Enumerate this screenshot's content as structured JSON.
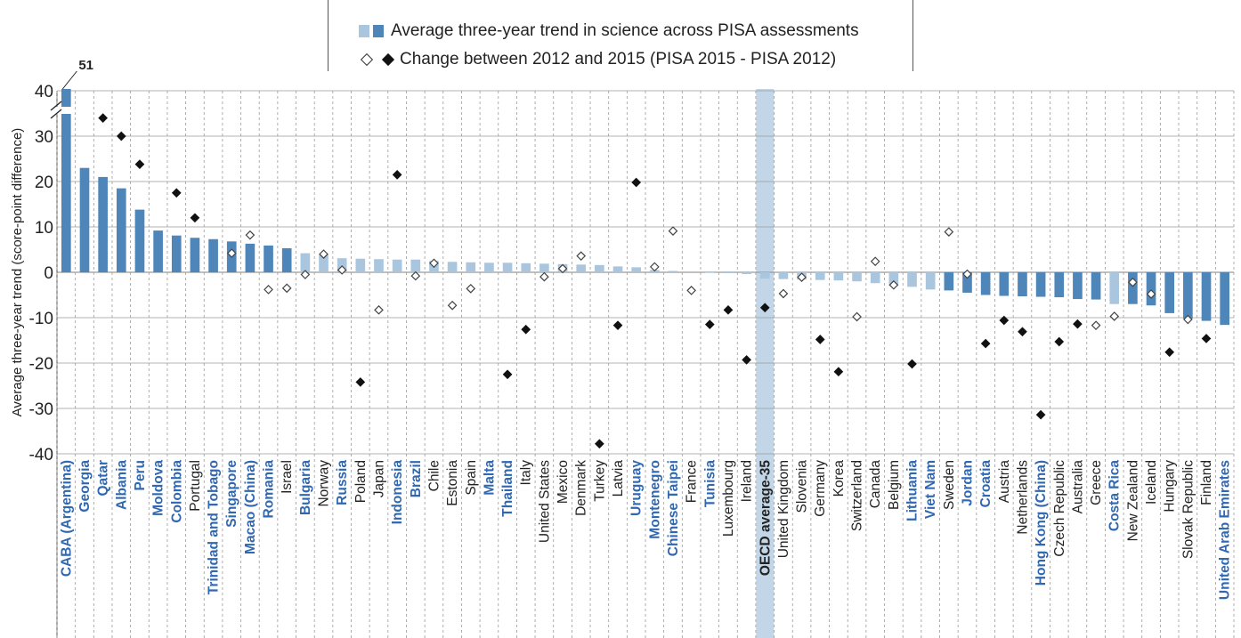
{
  "legend": {
    "trend_label": "Average three-year trend in science across PISA assessments",
    "change_label": "Change between 2012 and 2015 (PISA 2015 - PISA 2012)"
  },
  "colors": {
    "significant_bar": "#4f86b9",
    "nonsignificant_bar": "#a9c6de",
    "highlight_band": "#c2d6e8",
    "blue_label": "#2f67b1",
    "black_label": "#222222"
  },
  "chart_data": {
    "type": "bar",
    "ylabel": "Average three-year trend (score-point difference)",
    "ylim": [
      -40,
      40
    ],
    "yticks": [
      40,
      30,
      20,
      10,
      0,
      -10,
      -20,
      -30,
      -40
    ],
    "axis_break": true,
    "truncated_label": "51",
    "grid": true,
    "highlight_category": "OECD average-35",
    "categories": [
      "CABA (Argentina)",
      "Georgia",
      "Qatar",
      "Albania",
      "Peru",
      "Moldova",
      "Colombia",
      "Portugal",
      "Trinidad and Tobago",
      "Singapore",
      "Macao (China)",
      "Romania",
      "Israel",
      "Bulgaria",
      "Norway",
      "Russia",
      "Poland",
      "Japan",
      "Indonesia",
      "Brazil",
      "Chile",
      "Estonia",
      "Spain",
      "Malta",
      "Thailand",
      "Italy",
      "United States",
      "Mexico",
      "Denmark",
      "Turkey",
      "Latvia",
      "Uruguay",
      "Montenegro",
      "Chinese Taipei",
      "France",
      "Tunisia",
      "Luxembourg",
      "Ireland",
      "OECD average-35",
      "United Kingdom",
      "Slovenia",
      "Germany",
      "Korea",
      "Switzerland",
      "Canada",
      "Belgium",
      "Lithuania",
      "Viet Nam",
      "Sweden",
      "Jordan",
      "Croatia",
      "Austria",
      "Netherlands",
      "Hong Kong (China)",
      "Czech Republic",
      "Australia",
      "Greece",
      "Costa Rica",
      "New Zealand",
      "Iceland",
      "Hungary",
      "Slovak Republic",
      "Finland",
      "United Arab Emirates"
    ],
    "label_blue": [
      true,
      true,
      true,
      true,
      true,
      true,
      true,
      false,
      true,
      true,
      true,
      true,
      false,
      true,
      false,
      true,
      false,
      false,
      true,
      true,
      false,
      false,
      false,
      true,
      true,
      false,
      false,
      false,
      false,
      false,
      false,
      true,
      true,
      true,
      false,
      true,
      false,
      false,
      false,
      false,
      false,
      false,
      false,
      false,
      false,
      false,
      true,
      true,
      false,
      true,
      true,
      false,
      false,
      true,
      false,
      false,
      false,
      true,
      false,
      false,
      false,
      false,
      false,
      true
    ],
    "series": [
      {
        "name": "Average three-year trend in science across PISA assessments",
        "values": [
          51,
          23,
          21,
          18.5,
          13.8,
          9.2,
          8.1,
          7.6,
          7.3,
          6.8,
          6.3,
          5.9,
          5.3,
          4.2,
          3.9,
          3.1,
          3.0,
          2.9,
          2.8,
          2.8,
          2.5,
          2.3,
          2.2,
          2.1,
          2.1,
          2.0,
          1.9,
          1.8,
          1.7,
          1.6,
          1.3,
          1.1,
          0.5,
          0.3,
          0.2,
          -0.1,
          -0.2,
          -0.4,
          -1.4,
          -1.5,
          -1.6,
          -1.7,
          -1.8,
          -2.0,
          -2.4,
          -3.0,
          -3.2,
          -3.8,
          -4.0,
          -4.5,
          -5.0,
          -5.2,
          -5.3,
          -5.4,
          -5.5,
          -5.9,
          -6.0,
          -7.0,
          -7.0,
          -7.3,
          -9.0,
          -10.2,
          -10.7,
          -11.6
        ],
        "significant": [
          true,
          true,
          true,
          true,
          true,
          true,
          true,
          true,
          true,
          true,
          true,
          true,
          true,
          false,
          false,
          false,
          false,
          false,
          false,
          false,
          false,
          false,
          false,
          false,
          false,
          false,
          false,
          false,
          false,
          false,
          false,
          false,
          false,
          false,
          false,
          false,
          false,
          false,
          false,
          false,
          false,
          false,
          false,
          false,
          false,
          false,
          false,
          false,
          true,
          true,
          true,
          true,
          true,
          true,
          true,
          true,
          true,
          false,
          true,
          true,
          true,
          true,
          true,
          true
        ]
      },
      {
        "name": "Change between 2012 and 2015 (PISA 2015 - PISA 2012)",
        "values": [
          null,
          null,
          34,
          30,
          23.8,
          null,
          17.5,
          12,
          null,
          4.2,
          8.2,
          -3.8,
          -3.5,
          -0.5,
          4.0,
          0.5,
          -24.2,
          -8.3,
          21.5,
          -0.8,
          2.0,
          -7.3,
          -3.6,
          null,
          -22.5,
          -12.6,
          -1.0,
          0.8,
          3.6,
          -37.8,
          -11.7,
          19.8,
          1.2,
          9.1,
          -4.0,
          -11.5,
          -8.3,
          -19.3,
          -7.8,
          -4.7,
          -1.1,
          -14.8,
          -21.9,
          -9.8,
          2.4,
          -2.8,
          -20.2,
          null,
          8.9,
          -0.4,
          -15.7,
          -10.6,
          -13.1,
          -31.4,
          -15.3,
          -11.4,
          -11.7,
          -9.7,
          -2.2,
          -4.8,
          -17.6,
          -10.4,
          -14.6,
          null
        ],
        "significant": [
          null,
          null,
          true,
          true,
          true,
          null,
          true,
          true,
          null,
          false,
          false,
          false,
          false,
          false,
          false,
          false,
          true,
          false,
          true,
          false,
          false,
          false,
          false,
          null,
          true,
          true,
          false,
          false,
          false,
          true,
          true,
          true,
          false,
          false,
          false,
          true,
          true,
          true,
          true,
          false,
          false,
          true,
          true,
          false,
          false,
          false,
          true,
          null,
          false,
          false,
          true,
          true,
          true,
          true,
          true,
          true,
          false,
          false,
          false,
          false,
          true,
          false,
          true,
          null
        ]
      }
    ]
  }
}
